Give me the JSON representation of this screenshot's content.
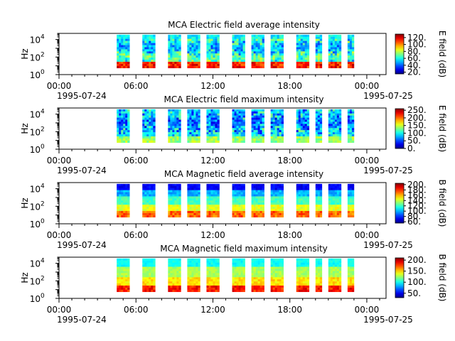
{
  "figure": {
    "panels": [
      {
        "title": "MCA  Electric field average intensity",
        "ylabel": "Hz",
        "colorbar_label": "E field (dB)",
        "colorbar_ticks": [
          "120.",
          "100.",
          "80.",
          "60.",
          "40.",
          "20."
        ],
        "colorbar_range": [
          15,
          130
        ]
      },
      {
        "title": "MCA  Electric field maximum intensity",
        "ylabel": "Hz",
        "colorbar_label": "E field (dB)",
        "colorbar_ticks": [
          "250.",
          "200.",
          "150.",
          "100.",
          "50.",
          "0."
        ],
        "colorbar_range": [
          0,
          260
        ]
      },
      {
        "title": "MCA  Magnetic field average intensity",
        "ylabel": "Hz",
        "colorbar_label": "B field (dB)",
        "colorbar_ticks": [
          "200.",
          "180.",
          "160.",
          "140.",
          "120.",
          "100.",
          "80.",
          "60."
        ],
        "colorbar_range": [
          55,
          205
        ]
      },
      {
        "title": "MCA  Magnetic field maximum intensity",
        "ylabel": "Hz",
        "colorbar_label": "B field (dB)",
        "colorbar_ticks": [
          "200.",
          "150.",
          "100.",
          "50."
        ],
        "colorbar_range": [
          30,
          210
        ]
      }
    ],
    "x_tick_labels": [
      "00:00",
      "06:00",
      "12:00",
      "18:00",
      "00:00"
    ],
    "x_date_labels": [
      "1995-07-24",
      "1995-07-25"
    ],
    "y_tick_labels": [
      {
        "base": "10",
        "exp": "0"
      },
      {
        "base": "10",
        "exp": "2"
      },
      {
        "base": "10",
        "exp": "4"
      }
    ]
  },
  "chart_data": [
    {
      "type": "heatmap",
      "title": "MCA  Electric field average intensity",
      "ylabel": "Hz",
      "y_scale": "log",
      "ylim": [
        1,
        50000
      ],
      "x_range": [
        "1995-07-24 00:00",
        "1995-07-25 01:30"
      ],
      "colorbar": {
        "label": "E field (dB)",
        "range": [
          15,
          130
        ]
      },
      "data_intervals": [
        [
          "04:30",
          "05:30"
        ],
        [
          "06:30",
          "07:30"
        ],
        [
          "08:30",
          "09:30"
        ],
        [
          "10:00",
          "11:00"
        ],
        [
          "11:30",
          "12:30"
        ],
        [
          "13:30",
          "14:30"
        ],
        [
          "15:00",
          "16:00"
        ],
        [
          "16:30",
          "17:30"
        ],
        [
          "18:30",
          "19:30"
        ],
        [
          "20:00",
          "20:30"
        ],
        [
          "21:00",
          "22:00"
        ],
        [
          "22:30",
          "23:00"
        ]
      ]
    },
    {
      "type": "heatmap",
      "title": "MCA  Electric field maximum intensity",
      "ylabel": "Hz",
      "y_scale": "log",
      "ylim": [
        1,
        50000
      ],
      "x_range": [
        "1995-07-24 00:00",
        "1995-07-25 01:30"
      ],
      "colorbar": {
        "label": "E field (dB)",
        "range": [
          0,
          260
        ]
      },
      "data_intervals": [
        [
          "04:30",
          "05:30"
        ],
        [
          "06:30",
          "07:30"
        ],
        [
          "08:30",
          "09:30"
        ],
        [
          "10:00",
          "11:00"
        ],
        [
          "11:30",
          "12:30"
        ],
        [
          "13:30",
          "14:30"
        ],
        [
          "15:00",
          "16:00"
        ],
        [
          "16:30",
          "17:30"
        ],
        [
          "18:30",
          "19:30"
        ],
        [
          "20:00",
          "20:30"
        ],
        [
          "21:00",
          "22:00"
        ],
        [
          "22:30",
          "23:00"
        ]
      ]
    },
    {
      "type": "heatmap",
      "title": "MCA  Magnetic field average intensity",
      "ylabel": "Hz",
      "y_scale": "log",
      "ylim": [
        1,
        50000
      ],
      "x_range": [
        "1995-07-24 00:00",
        "1995-07-25 01:30"
      ],
      "colorbar": {
        "label": "B field (dB)",
        "range": [
          55,
          205
        ]
      },
      "data_intervals": [
        [
          "04:30",
          "05:30"
        ],
        [
          "06:30",
          "07:30"
        ],
        [
          "08:30",
          "09:30"
        ],
        [
          "10:00",
          "11:00"
        ],
        [
          "11:30",
          "12:30"
        ],
        [
          "13:30",
          "14:30"
        ],
        [
          "15:00",
          "16:00"
        ],
        [
          "16:30",
          "17:30"
        ],
        [
          "18:30",
          "19:30"
        ],
        [
          "20:00",
          "20:30"
        ],
        [
          "21:00",
          "22:00"
        ],
        [
          "22:30",
          "23:00"
        ]
      ]
    },
    {
      "type": "heatmap",
      "title": "MCA  Magnetic field maximum intensity",
      "ylabel": "Hz",
      "y_scale": "log",
      "ylim": [
        1,
        50000
      ],
      "x_range": [
        "1995-07-24 00:00",
        "1995-07-25 01:30"
      ],
      "colorbar": {
        "label": "B field (dB)",
        "range": [
          30,
          210
        ]
      },
      "data_intervals": [
        [
          "04:30",
          "05:30"
        ],
        [
          "06:30",
          "07:30"
        ],
        [
          "08:30",
          "09:30"
        ],
        [
          "10:00",
          "11:00"
        ],
        [
          "11:30",
          "12:30"
        ],
        [
          "13:30",
          "14:30"
        ],
        [
          "15:00",
          "16:00"
        ],
        [
          "16:30",
          "17:30"
        ],
        [
          "18:30",
          "19:30"
        ],
        [
          "20:00",
          "20:30"
        ],
        [
          "21:00",
          "22:00"
        ],
        [
          "22:30",
          "23:00"
        ]
      ]
    }
  ]
}
